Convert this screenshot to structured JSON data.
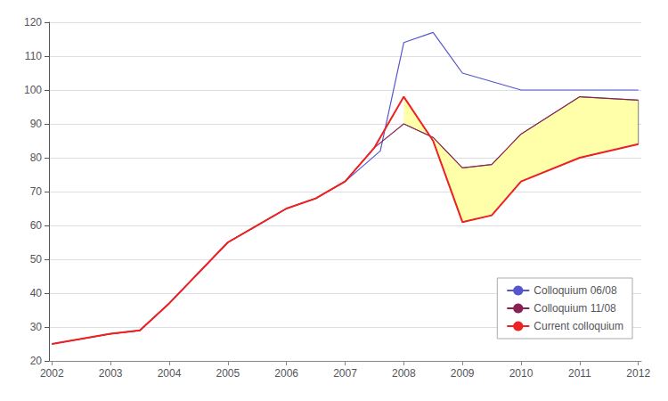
{
  "chart_data": {
    "type": "line",
    "series": [
      {
        "name": "Colloquium 06/08",
        "color": "#5555cc",
        "x": [
          2002,
          2003,
          2003.5,
          2004,
          2005,
          2006,
          2006.5,
          2007,
          2007.6,
          2008,
          2008.5,
          2009,
          2010,
          2011,
          2012
        ],
        "values": [
          25,
          28,
          29,
          37,
          55,
          65,
          68,
          73,
          82,
          114,
          117,
          105,
          100,
          100,
          100
        ]
      },
      {
        "name": "Colloquium 11/08",
        "color": "#882255",
        "x": [
          2002,
          2003,
          2003.5,
          2004,
          2005,
          2006,
          2006.5,
          2007,
          2007.5,
          2008,
          2008.5,
          2009,
          2009.5,
          2010,
          2011,
          2012
        ],
        "values": [
          25,
          28,
          29,
          37,
          55,
          65,
          68,
          73,
          83,
          90,
          86,
          77,
          78,
          87,
          98,
          97
        ]
      },
      {
        "name": "Current colloquium",
        "color": "#ee2222",
        "x": [
          2002,
          2003,
          2003.5,
          2004,
          2005,
          2006,
          2006.5,
          2007,
          2007.5,
          2008,
          2008.5,
          2009,
          2009.5,
          2010,
          2011,
          2012
        ],
        "values": [
          25,
          28,
          29,
          37,
          55,
          65,
          68,
          73,
          83,
          98,
          85,
          61,
          63,
          73,
          80,
          84
        ]
      }
    ],
    "band": {
      "x": [
        2008,
        2008.5,
        2009,
        2009.5,
        2010,
        2011,
        2012
      ],
      "upper": [
        90,
        86,
        77,
        78,
        87,
        98,
        97
      ],
      "lower": [
        98,
        85,
        61,
        63,
        73,
        80,
        84
      ],
      "color": "#ffffaa",
      "edge_color": "#444444"
    },
    "xlim": [
      2001.95,
      2012.05
    ],
    "xticks": [
      2002,
      2003,
      2004,
      2005,
      2006,
      2007,
      2008,
      2009,
      2010,
      2011,
      2012
    ],
    "ylim": [
      20,
      120
    ],
    "yticks": [
      20,
      30,
      40,
      50,
      60,
      70,
      80,
      90,
      100,
      110,
      120
    ],
    "grid": true,
    "legend": "lower right"
  }
}
